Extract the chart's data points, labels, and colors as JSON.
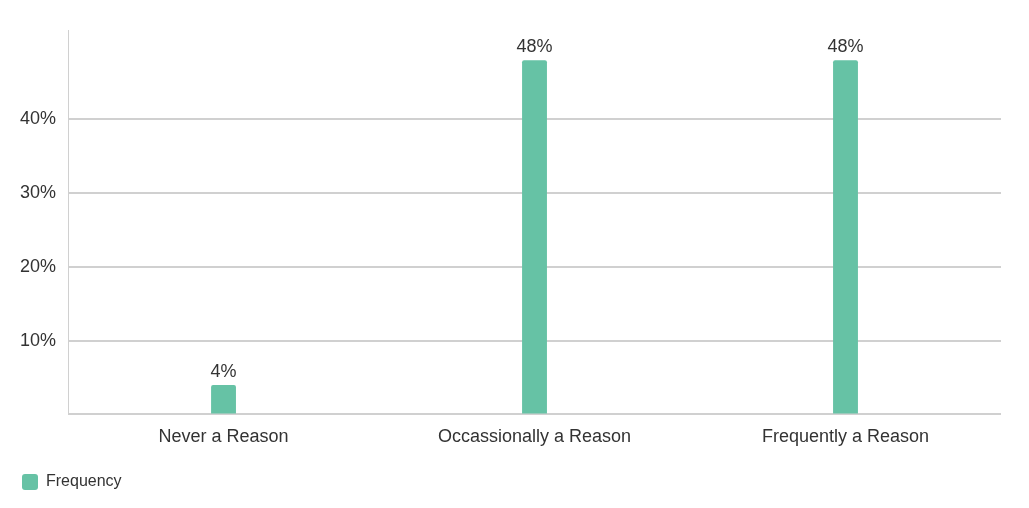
{
  "chart_data": {
    "type": "bar",
    "categories": [
      "Never a Reason",
      "Occassionally a Reason",
      "Frequently a Reason"
    ],
    "series": [
      {
        "name": "Frequency",
        "color": "#66c2a5",
        "values": [
          4,
          48,
          48
        ],
        "value_labels": [
          "4%",
          "48%",
          "48%"
        ]
      }
    ],
    "ylim": [
      0,
      52
    ],
    "yticks": [
      {
        "value": 0,
        "label": null
      },
      {
        "value": 10,
        "label": "10%"
      },
      {
        "value": 20,
        "label": "20%"
      },
      {
        "value": 30,
        "label": "30%"
      },
      {
        "value": 40,
        "label": "40%"
      }
    ],
    "grid": "y",
    "legend": "bottom left"
  }
}
